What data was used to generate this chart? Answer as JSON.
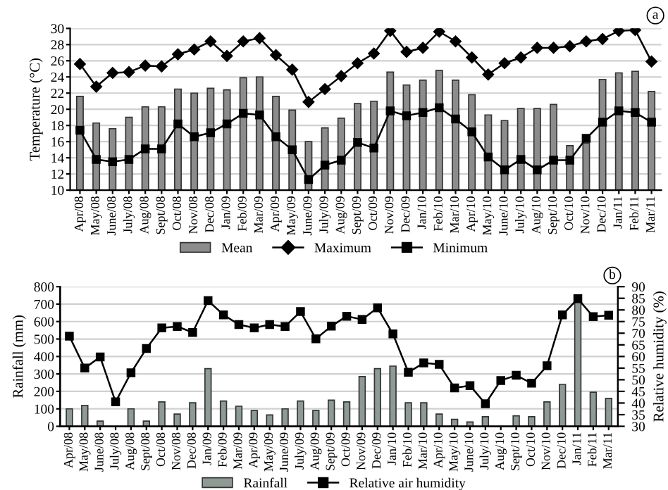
{
  "chart_data": [
    {
      "type": "bar",
      "ylabel": "Temperature (°C)",
      "annotations": [
        "a"
      ],
      "categories": [
        "Apr/08",
        "May/08",
        "June/08",
        "July/08",
        "Aug/08",
        "Sept/08",
        "Oct/08",
        "Nov/08",
        "Dec/08",
        "Jan/09",
        "Feb/09",
        "Mar/09",
        "Apr/09",
        "May/09",
        "June/09",
        "July/09",
        "Aug/09",
        "Sept/09",
        "Oct/09",
        "Nov/09",
        "Dec/09",
        "Jan/10",
        "Feb/10",
        "Mar/10",
        "Apr/10",
        "May/10",
        "June/10",
        "July/10",
        "Aug/10",
        "Sept/10",
        "Oct/10",
        "Nov/10",
        "Dec/10",
        "Jan/11",
        "Feb/11",
        "Mar/11"
      ],
      "series": [
        {
          "name": "Mean",
          "color": "#8c8c8c",
          "values": [
            21.6,
            18.3,
            17.6,
            19.0,
            20.3,
            20.3,
            22.5,
            22.0,
            22.6,
            22.4,
            23.9,
            24.0,
            21.6,
            19.9,
            16.0,
            17.7,
            18.9,
            20.7,
            21.0,
            24.6,
            23.0,
            23.6,
            24.8,
            23.6,
            21.8,
            19.3,
            18.6,
            20.1,
            20.1,
            20.6,
            15.5,
            15.8,
            23.7,
            24.5,
            24.7,
            22.2
          ]
        },
        {
          "name": "Maximum",
          "type": "line",
          "color": "#000000",
          "marker": "diamond",
          "values": [
            25.6,
            22.8,
            24.5,
            24.6,
            25.4,
            25.3,
            26.8,
            27.4,
            28.4,
            26.6,
            28.4,
            28.8,
            26.7,
            24.9,
            20.9,
            22.5,
            24.1,
            25.7,
            26.9,
            29.7,
            27.1,
            27.6,
            29.6,
            28.4,
            26.4,
            24.3,
            25.7,
            26.4,
            27.6,
            27.6,
            27.8,
            28.4,
            28.7,
            29.7,
            29.8,
            25.9
          ]
        },
        {
          "name": "Minimum",
          "type": "line",
          "color": "#000000",
          "marker": "square",
          "values": [
            17.4,
            13.8,
            13.5,
            13.8,
            15.1,
            15.1,
            18.2,
            16.6,
            17.1,
            18.2,
            19.5,
            19.3,
            16.6,
            15.0,
            11.3,
            13.1,
            13.7,
            15.9,
            15.2,
            19.8,
            19.2,
            19.6,
            20.2,
            18.8,
            17.2,
            14.1,
            12.5,
            13.8,
            12.5,
            13.7,
            13.7,
            16.4,
            18.4,
            19.8,
            19.6,
            18.4
          ]
        }
      ],
      "ylim": [
        10,
        30
      ],
      "yticks": [
        10,
        12,
        14,
        16,
        18,
        20,
        22,
        24,
        26,
        28,
        30
      ],
      "grid": "y",
      "legend": "bottom"
    },
    {
      "type": "bar",
      "ylabel": "Rainfall (mm)",
      "y2label": "Relative humidity (%)",
      "annotations": [
        "b"
      ],
      "categories": [
        "Apr/08",
        "May/08",
        "June/08",
        "July/08",
        "Aug/08",
        "Sept/08",
        "Oct/08",
        "Nov/08",
        "Dec/08",
        "Jan/09",
        "Feb/09",
        "Mar/09",
        "Apr/09",
        "May/09",
        "June/09",
        "July/09",
        "Aug/09",
        "Sept/09",
        "Oct/09",
        "Nov/09",
        "Dec/09",
        "Jan/10",
        "Feb/10",
        "Mar/10",
        "Apr/10",
        "May/10",
        "June/10",
        "July/10",
        "Aug/10",
        "Sept/10",
        "Oct/10",
        "Nov/10",
        "Dec/10",
        "Jan/11",
        "Feb/11",
        "Mar/11"
      ],
      "series": [
        {
          "name": "Rainfall",
          "color": "#8e9a94",
          "values": [
            100,
            120,
            30,
            0,
            100,
            30,
            140,
            70,
            135,
            330,
            145,
            115,
            90,
            65,
            100,
            145,
            90,
            150,
            140,
            285,
            330,
            345,
            135,
            135,
            70,
            40,
            25,
            55,
            0,
            60,
            55,
            140,
            240,
            720,
            195,
            160
          ]
        },
        {
          "name": "Relative air humidity",
          "type": "line",
          "axis": "y2",
          "color": "#000000",
          "marker": "square",
          "values": [
            68.7,
            55.0,
            59.8,
            40.5,
            53.0,
            63.4,
            72.3,
            72.9,
            70.3,
            84.0,
            77.9,
            73.7,
            72.3,
            73.7,
            72.9,
            79.3,
            67.6,
            73.0,
            77.3,
            75.9,
            80.9,
            69.7,
            53.2,
            57.2,
            56.6,
            46.5,
            47.5,
            39.7,
            49.7,
            51.9,
            48.5,
            56.0,
            77.9,
            84.8,
            77.1,
            77.7
          ]
        }
      ],
      "ylim": [
        0,
        800
      ],
      "yticks": [
        0,
        100,
        200,
        300,
        400,
        500,
        600,
        700,
        800
      ],
      "y2lim": [
        30,
        90
      ],
      "y2ticks": [
        30,
        35,
        40,
        45,
        50,
        55,
        60,
        65,
        70,
        75,
        80,
        85,
        90
      ],
      "grid": "y",
      "legend": "bottom"
    }
  ]
}
